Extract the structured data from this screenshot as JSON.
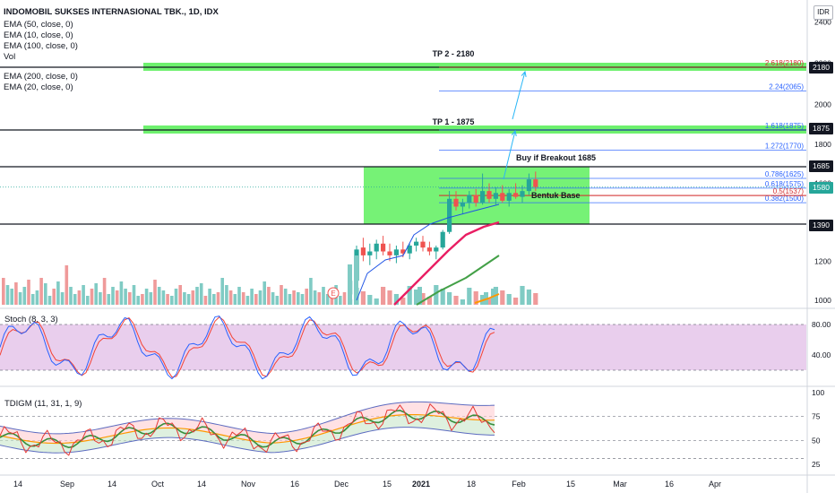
{
  "header": {
    "title": "INDOMOBIL SUKSES INTERNASIONAL TBK., 1D, IDX",
    "indicators": [
      "EMA (50, close, 0)",
      "EMA (10, close, 0)",
      "EMA (100, close, 0)",
      "Vol",
      "EMA (200, close, 0)",
      "EMA (20, close, 0)"
    ],
    "currency": "IDR"
  },
  "colors": {
    "up": "#26a69a",
    "down": "#ef5350",
    "zone": "#5ef05e",
    "base": "#d32f2f",
    "fib": "#2962ff",
    "ema10": "#1e53e5",
    "ema20": "#e91e63",
    "ema50": "#43a047",
    "ema100": "#ff9800",
    "stochFill": "#e1bee7",
    "last": "#26a69a"
  },
  "chart_data": [
    {
      "type": "line",
      "title": "INDOMOBIL SUKSES INTERNASIONAL TBK., 1D, IDX",
      "ylabel": "IDR",
      "ylim": [
        950,
        2450
      ],
      "y_ticks": [
        1000,
        1200,
        1400,
        1600,
        1800,
        2000,
        2200,
        2400
      ],
      "x_ticks": [
        "14",
        "Sep",
        "14",
        "Oct",
        "14",
        "Nov",
        "16",
        "Dec",
        "15",
        "2021",
        "18",
        "Feb",
        "15",
        "Mar",
        "16",
        "Apr"
      ],
      "price_badges": [
        {
          "value": "2180",
          "kind": "level"
        },
        {
          "value": "1875",
          "kind": "level"
        },
        {
          "value": "1685",
          "kind": "level"
        },
        {
          "value": "1580",
          "kind": "last"
        },
        {
          "value": "1390",
          "kind": "level"
        }
      ],
      "horizontal_levels": [
        2180,
        1875,
        1685,
        1390
      ],
      "fib_levels": [
        {
          "label": "2.618(2180)",
          "value": 2180
        },
        {
          "label": "2.24(2065)",
          "value": 2065
        },
        {
          "label": "1.618(1875)",
          "value": 1875
        },
        {
          "label": "1.272(1770)",
          "value": 1770
        },
        {
          "label": "0.786(1625)",
          "value": 1625
        },
        {
          "label": "0.618(1575)",
          "value": 1575
        },
        {
          "label": "0.5(1537)",
          "value": 1537
        },
        {
          "label": "0.382(1500)",
          "value": 1500
        }
      ],
      "annotations": [
        "TP 2 - 2180",
        "TP 1 - 1875",
        "Buy if Breakout 1685",
        "Bentuk Base"
      ],
      "candles_recent": [
        {
          "o": 1030,
          "h": 1120,
          "l": 1010,
          "c": 1100
        },
        {
          "o": 1100,
          "h": 1280,
          "l": 1080,
          "c": 1260
        },
        {
          "o": 1270,
          "h": 1320,
          "l": 1200,
          "c": 1230
        },
        {
          "o": 1230,
          "h": 1290,
          "l": 1180,
          "c": 1250
        },
        {
          "o": 1250,
          "h": 1310,
          "l": 1210,
          "c": 1290
        },
        {
          "o": 1290,
          "h": 1330,
          "l": 1230,
          "c": 1250
        },
        {
          "o": 1250,
          "h": 1290,
          "l": 1200,
          "c": 1230
        },
        {
          "o": 1230,
          "h": 1280,
          "l": 1190,
          "c": 1260
        },
        {
          "o": 1260,
          "h": 1300,
          "l": 1220,
          "c": 1240
        },
        {
          "o": 1240,
          "h": 1290,
          "l": 1210,
          "c": 1280
        },
        {
          "o": 1280,
          "h": 1320,
          "l": 1250,
          "c": 1300
        },
        {
          "o": 1300,
          "h": 1330,
          "l": 1250,
          "c": 1270
        },
        {
          "o": 1270,
          "h": 1300,
          "l": 1230,
          "c": 1250
        },
        {
          "o": 1250,
          "h": 1280,
          "l": 1210,
          "c": 1270
        },
        {
          "o": 1270,
          "h": 1360,
          "l": 1260,
          "c": 1350
        },
        {
          "o": 1350,
          "h": 1560,
          "l": 1340,
          "c": 1520
        },
        {
          "o": 1520,
          "h": 1560,
          "l": 1460,
          "c": 1480
        },
        {
          "o": 1480,
          "h": 1520,
          "l": 1440,
          "c": 1500
        },
        {
          "o": 1500,
          "h": 1560,
          "l": 1470,
          "c": 1540
        },
        {
          "o": 1540,
          "h": 1570,
          "l": 1480,
          "c": 1500
        },
        {
          "o": 1500,
          "h": 1650,
          "l": 1490,
          "c": 1560
        },
        {
          "o": 1560,
          "h": 1600,
          "l": 1500,
          "c": 1520
        },
        {
          "o": 1520,
          "h": 1580,
          "l": 1490,
          "c": 1550
        },
        {
          "o": 1550,
          "h": 1590,
          "l": 1500,
          "c": 1510
        },
        {
          "o": 1510,
          "h": 1570,
          "l": 1480,
          "c": 1550
        },
        {
          "o": 1550,
          "h": 1600,
          "l": 1520,
          "c": 1530
        },
        {
          "o": 1530,
          "h": 1590,
          "l": 1500,
          "c": 1560
        },
        {
          "o": 1560,
          "h": 1650,
          "l": 1540,
          "c": 1620
        },
        {
          "o": 1620,
          "h": 1660,
          "l": 1560,
          "c": 1580
        }
      ]
    },
    {
      "type": "line",
      "title": "Stoch (8, 3, 3)",
      "ylim": [
        0,
        100
      ],
      "y_ticks": [
        "80.00",
        "40.00"
      ],
      "band": [
        20,
        80
      ]
    },
    {
      "type": "line",
      "title": "TDIGM (11, 31, 1, 9)",
      "ylim": [
        20,
        100
      ],
      "y_ticks": [
        "100",
        "75",
        "50",
        "25"
      ]
    }
  ]
}
